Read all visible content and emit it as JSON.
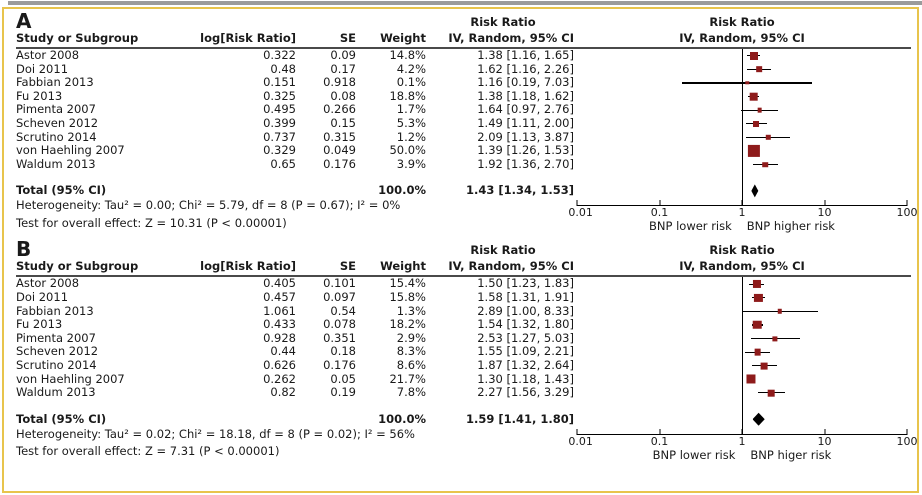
{
  "colors": {
    "marker": "#8e1b1b",
    "diamond": "#000000",
    "figure_border": "#e8c44c",
    "header_rule": "#4a4a4a",
    "line": "#000000"
  },
  "columns": {
    "study": "Study or Subgroup",
    "logrr": "log[Risk Ratio]",
    "se": "SE",
    "weight": "Weight",
    "ci_header_top": "Risk Ratio",
    "ci_header": "IV, Random, 95% CI",
    "plot_header_top": "Risk Ratio",
    "plot_header": "IV, Random, 95% CI"
  },
  "axis": {
    "ticks": [
      "0.01",
      "0.1",
      "1",
      "10",
      "100"
    ],
    "tick_values": [
      0.01,
      0.1,
      1,
      10,
      100
    ],
    "scale": "log",
    "min": 0.01,
    "max": 100
  },
  "chart_data": [
    {
      "type": "forest",
      "letter": "A",
      "studies": [
        {
          "name": "Astor 2008",
          "logrr": "0.322",
          "se": "0.09",
          "weight": "14.8%",
          "ci_text": "1.38 [1.16, 1.65]",
          "est": 1.38,
          "lo": 1.16,
          "hi": 1.65,
          "w": 14.8
        },
        {
          "name": "Doi 2011",
          "logrr": "0.48",
          "se": "0.17",
          "weight": "4.2%",
          "ci_text": "1.62 [1.16, 2.26]",
          "est": 1.62,
          "lo": 1.16,
          "hi": 2.26,
          "w": 4.2
        },
        {
          "name": "Fabbian 2013",
          "logrr": "0.151",
          "se": "0.918",
          "weight": "0.1%",
          "ci_text": "1.16 [0.19, 7.03]",
          "est": 1.16,
          "lo": 0.19,
          "hi": 7.03,
          "w": 0.1
        },
        {
          "name": "Fu 2013",
          "logrr": "0.325",
          "se": "0.08",
          "weight": "18.8%",
          "ci_text": "1.38 [1.18, 1.62]",
          "est": 1.38,
          "lo": 1.18,
          "hi": 1.62,
          "w": 18.8
        },
        {
          "name": "Pimenta 2007",
          "logrr": "0.495",
          "se": "0.266",
          "weight": "1.7%",
          "ci_text": "1.64 [0.97, 2.76]",
          "est": 1.64,
          "lo": 0.97,
          "hi": 2.76,
          "w": 1.7
        },
        {
          "name": "Scheven 2012",
          "logrr": "0.399",
          "se": "0.15",
          "weight": "5.3%",
          "ci_text": "1.49 [1.11, 2.00]",
          "est": 1.49,
          "lo": 1.11,
          "hi": 2.0,
          "w": 5.3
        },
        {
          "name": "Scrutino 2014",
          "logrr": "0.737",
          "se": "0.315",
          "weight": "1.2%",
          "ci_text": "2.09 [1.13, 3.87]",
          "est": 2.09,
          "lo": 1.13,
          "hi": 3.87,
          "w": 1.2
        },
        {
          "name": "von Haehling 2007",
          "logrr": "0.329",
          "se": "0.049",
          "weight": "50.0%",
          "ci_text": "1.39 [1.26, 1.53]",
          "est": 1.39,
          "lo": 1.26,
          "hi": 1.53,
          "w": 50.0
        },
        {
          "name": "Waldum 2013",
          "logrr": "0.65",
          "se": "0.176",
          "weight": "3.9%",
          "ci_text": "1.92 [1.36, 2.70]",
          "est": 1.92,
          "lo": 1.36,
          "hi": 2.7,
          "w": 3.9
        }
      ],
      "total": {
        "label": "Total (95% CI)",
        "weight": "100.0%",
        "ci_text": "1.43 [1.34, 1.53]",
        "est": 1.43,
        "lo": 1.34,
        "hi": 1.53
      },
      "heterogeneity": "Heterogeneity: Tau² = 0.00; Chi² = 5.79, df = 8 (P = 0.67); I² = 0%",
      "test": "Test for overall effect: Z = 10.31 (P < 0.00001)",
      "xlabel_left": "BNP lower risk",
      "xlabel_right": "BNP higher risk"
    },
    {
      "type": "forest",
      "letter": "B",
      "studies": [
        {
          "name": "Astor 2008",
          "logrr": "0.405",
          "se": "0.101",
          "weight": "15.4%",
          "ci_text": "1.50 [1.23, 1.83]",
          "est": 1.5,
          "lo": 1.23,
          "hi": 1.83,
          "w": 15.4
        },
        {
          "name": "Doi 2011",
          "logrr": "0.457",
          "se": "0.097",
          "weight": "15.8%",
          "ci_text": "1.58 [1.31, 1.91]",
          "est": 1.58,
          "lo": 1.31,
          "hi": 1.91,
          "w": 15.8
        },
        {
          "name": "Fabbian 2013",
          "logrr": "1.061",
          "se": "0.54",
          "weight": "1.3%",
          "ci_text": "2.89 [1.00, 8.33]",
          "est": 2.89,
          "lo": 1.0,
          "hi": 8.33,
          "w": 1.3
        },
        {
          "name": "Fu 2013",
          "logrr": "0.433",
          "se": "0.078",
          "weight": "18.2%",
          "ci_text": "1.54 [1.32, 1.80]",
          "est": 1.54,
          "lo": 1.32,
          "hi": 1.8,
          "w": 18.2
        },
        {
          "name": "Pimenta 2007",
          "logrr": "0.928",
          "se": "0.351",
          "weight": "2.9%",
          "ci_text": "2.53 [1.27, 5.03]",
          "est": 2.53,
          "lo": 1.27,
          "hi": 5.03,
          "w": 2.9
        },
        {
          "name": "Scheven 2012",
          "logrr": "0.44",
          "se": "0.18",
          "weight": "8.3%",
          "ci_text": "1.55 [1.09, 2.21]",
          "est": 1.55,
          "lo": 1.09,
          "hi": 2.21,
          "w": 8.3
        },
        {
          "name": "Scrutino 2014",
          "logrr": "0.626",
          "se": "0.176",
          "weight": "8.6%",
          "ci_text": "1.87 [1.32, 2.64]",
          "est": 1.87,
          "lo": 1.32,
          "hi": 2.64,
          "w": 8.6
        },
        {
          "name": "von Haehling 2007",
          "logrr": "0.262",
          "se": "0.05",
          "weight": "21.7%",
          "ci_text": "1.30 [1.18, 1.43]",
          "est": 1.3,
          "lo": 1.18,
          "hi": 1.43,
          "w": 21.7
        },
        {
          "name": "Waldum 2013",
          "logrr": "0.82",
          "se": "0.19",
          "weight": "7.8%",
          "ci_text": "2.27 [1.56, 3.29]",
          "est": 2.27,
          "lo": 1.56,
          "hi": 3.29,
          "w": 7.8
        }
      ],
      "total": {
        "label": "Total (95% CI)",
        "weight": "100.0%",
        "ci_text": "1.59 [1.41, 1.80]",
        "est": 1.59,
        "lo": 1.41,
        "hi": 1.8
      },
      "heterogeneity": "Heterogeneity: Tau² = 0.02; Chi² = 18.18, df = 8 (P = 0.02); I² = 56%",
      "test": "Test for overall effect: Z = 7.31 (P < 0.00001)",
      "xlabel_left": "BNP lower risk",
      "xlabel_right": "BNP higer risk"
    }
  ]
}
